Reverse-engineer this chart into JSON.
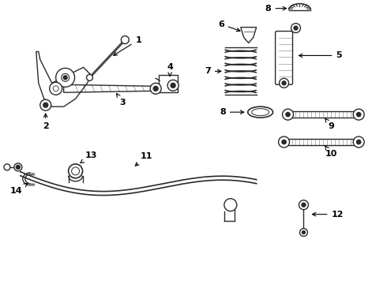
{
  "bg_color": "#ffffff",
  "line_color": "#2a2a2a",
  "lw": 1.0,
  "font_size": 8,
  "fig_w": 4.9,
  "fig_h": 3.6,
  "dpi": 100
}
